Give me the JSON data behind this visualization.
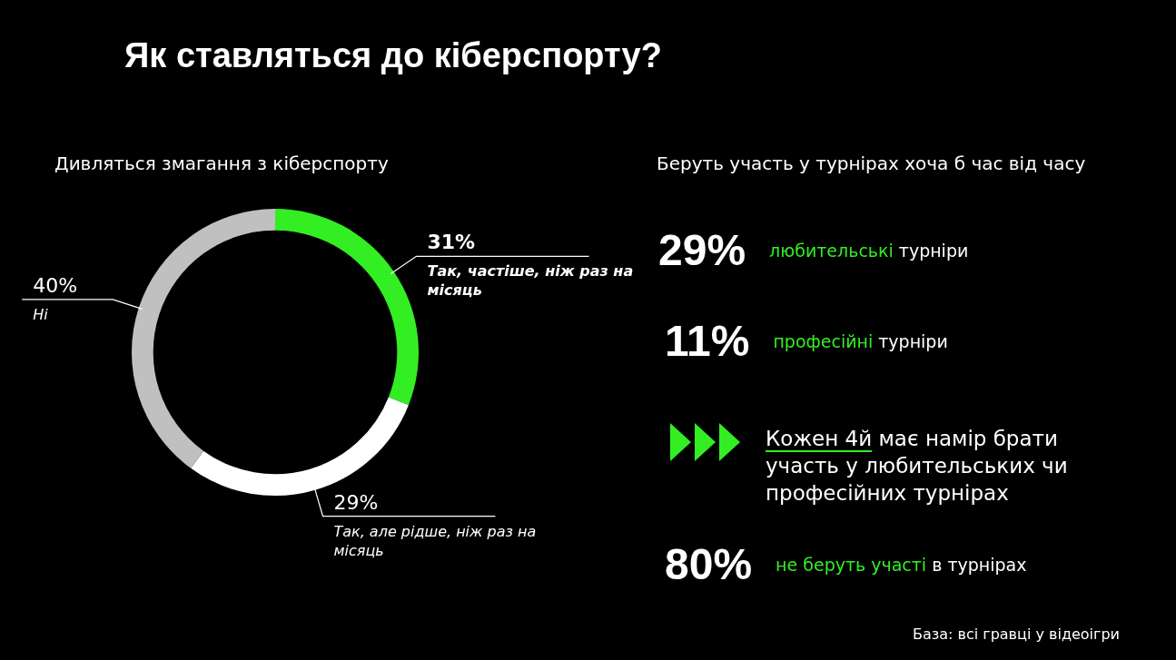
{
  "chart_data": [
    {
      "type": "donut",
      "title": "Як ставляться до кіберспорту?",
      "subtitle": "Дивляться змагання з кіберспорту",
      "categories": [
        "Так, частіше, ніж раз на місяць",
        "Так, але рідше, ніж раз на місяць",
        "Ні"
      ],
      "values": [
        31,
        29,
        40
      ],
      "colors": [
        "#33ee22",
        "#ffffff",
        "#c0c0c0"
      ],
      "value_labels": [
        "31%",
        "29%",
        "40%"
      ]
    },
    {
      "type": "other",
      "title": "Беруть участь у турнірах хоча б час від часу",
      "annotations": [
        "29%",
        "любительські",
        "турніри",
        "11%",
        "професійні",
        "турніри",
        "Кожен 4й",
        "має намір брати участь у любительських чи професійних турнірах",
        "80%",
        "не беруть участі",
        "в турнірах",
        "База: всі гравці у відеоігри"
      ]
    }
  ]
}
